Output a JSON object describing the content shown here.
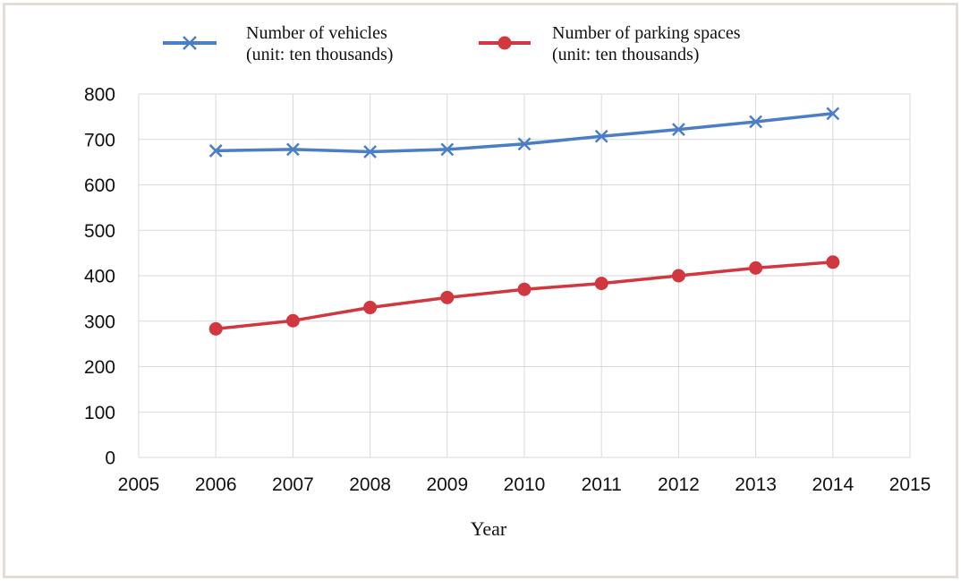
{
  "chart_data": {
    "type": "line",
    "title": "",
    "xlabel": "Year",
    "ylabel": "",
    "xlim": [
      2005,
      2015
    ],
    "ylim": [
      0,
      800
    ],
    "x_ticks": [
      2005,
      2006,
      2007,
      2008,
      2009,
      2010,
      2011,
      2012,
      2013,
      2014,
      2015
    ],
    "y_ticks": [
      0,
      100,
      200,
      300,
      400,
      500,
      600,
      700,
      800
    ],
    "grid": true,
    "legend_position": "top",
    "x": [
      2006,
      2007,
      2008,
      2009,
      2010,
      2011,
      2012,
      2013,
      2014
    ],
    "series": [
      {
        "name_line1": "Number of vehicles",
        "name_line2": "(unit: ten thousands)",
        "color": "#4a7fc6",
        "marker": "x",
        "values": [
          675,
          678,
          673,
          678,
          690,
          707,
          722,
          739,
          757
        ]
      },
      {
        "name_line1": "Number of parking spaces",
        "name_line2": "(unit: ten thousands)",
        "color": "#d1373e",
        "marker": "circle",
        "values": [
          283,
          301,
          330,
          352,
          370,
          383,
          400,
          417,
          430
        ]
      }
    ]
  }
}
